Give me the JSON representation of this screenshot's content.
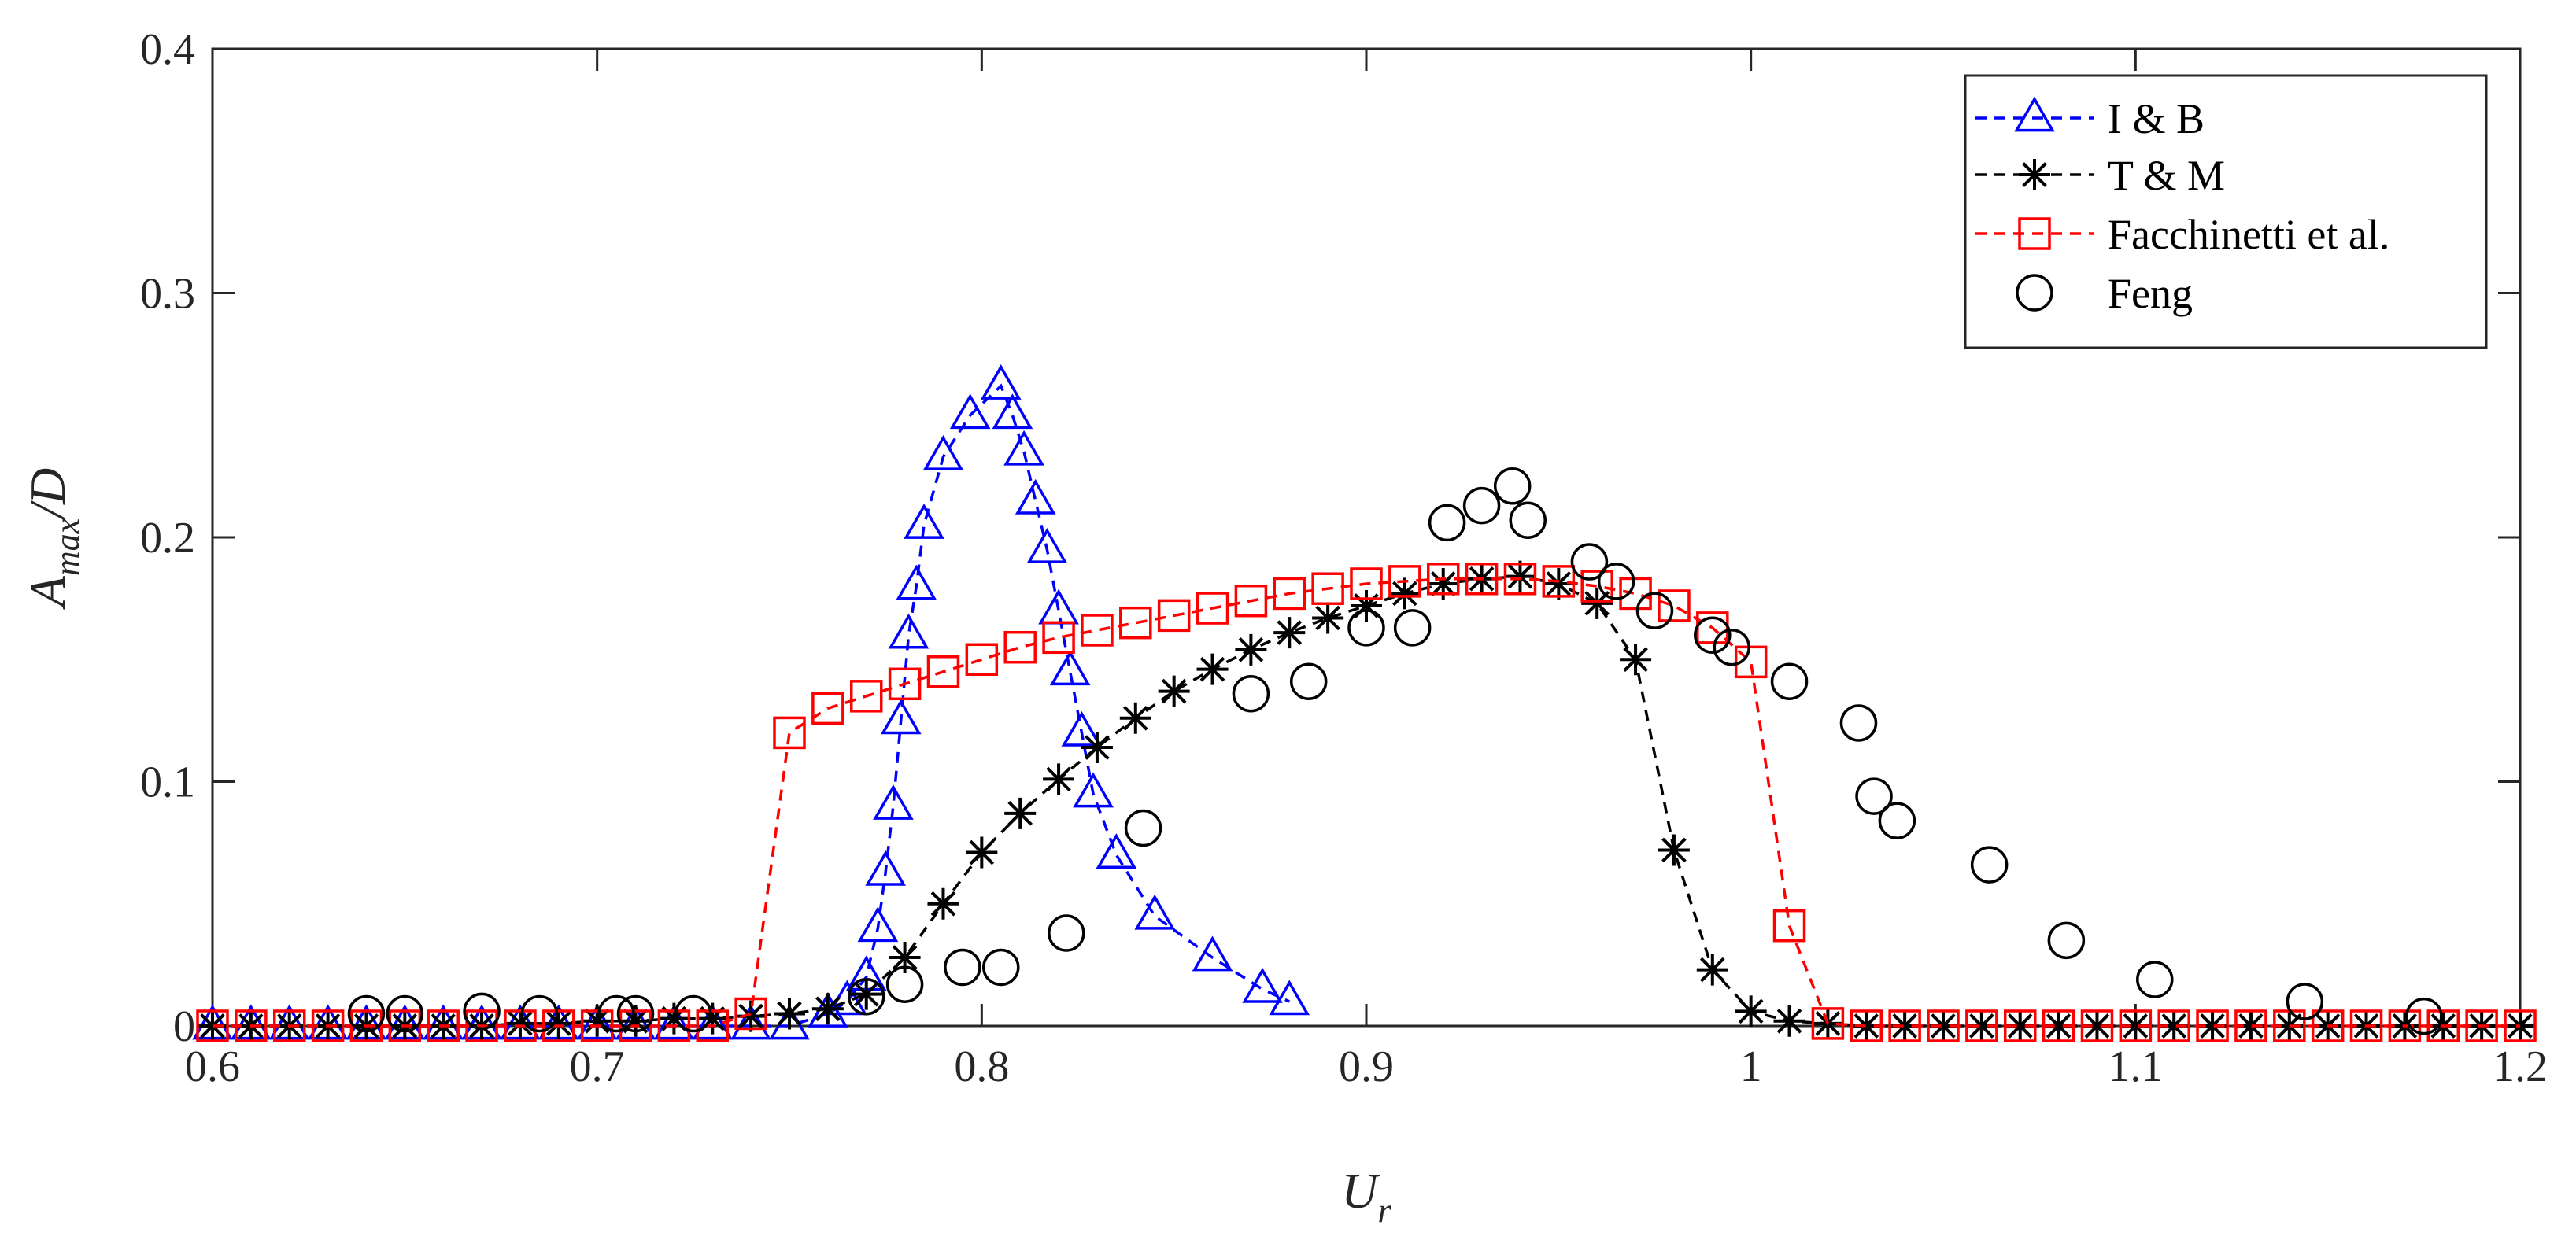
{
  "chart_data": {
    "type": "line",
    "title": "",
    "xlabel": {
      "main": "U",
      "sub": "r"
    },
    "ylabel": {
      "main": "A",
      "sub": "max",
      "suffix": "/D"
    },
    "xlim": [
      0.6,
      1.2
    ],
    "ylim": [
      0,
      0.4
    ],
    "xticks": [
      0.6,
      0.7,
      0.8,
      0.9,
      1.0,
      1.1,
      1.2
    ],
    "xtick_labels": [
      "0.6",
      "0.7",
      "0.8",
      "0.9",
      "1",
      "1.1",
      "1.2"
    ],
    "yticks": [
      0,
      0.1,
      0.2,
      0.3,
      0.4
    ],
    "ytick_labels": [
      "0",
      "0.1",
      "0.2",
      "0.3",
      "0.4"
    ],
    "grid": false,
    "legend_position": "top-right",
    "series": [
      {
        "name": "I & B",
        "color": "#0000ff",
        "marker": "triangle",
        "line": "dashed",
        "x": [
          0.6,
          0.61,
          0.62,
          0.63,
          0.64,
          0.65,
          0.66,
          0.67,
          0.68,
          0.69,
          0.7,
          0.71,
          0.72,
          0.73,
          0.74,
          0.75,
          0.76,
          0.765,
          0.77,
          0.773,
          0.775,
          0.777,
          0.779,
          0.781,
          0.783,
          0.785,
          0.79,
          0.797,
          0.805,
          0.808,
          0.811,
          0.814,
          0.817,
          0.82,
          0.823,
          0.826,
          0.829,
          0.835,
          0.845,
          0.86,
          0.873,
          0.88
        ],
        "y": [
          0,
          0,
          0,
          0,
          0,
          0,
          0,
          0,
          0,
          0,
          0,
          0,
          0,
          0,
          0,
          0,
          0.005,
          0.01,
          0.02,
          0.04,
          0.063,
          0.09,
          0.125,
          0.16,
          0.18,
          0.205,
          0.233,
          0.25,
          0.262,
          0.25,
          0.235,
          0.215,
          0.195,
          0.17,
          0.145,
          0.12,
          0.095,
          0.07,
          0.045,
          0.028,
          0.015,
          0.01
        ]
      },
      {
        "name": "T & M",
        "color": "#000000",
        "marker": "asterisk",
        "line": "dashed",
        "x": [
          0.6,
          0.61,
          0.62,
          0.63,
          0.64,
          0.65,
          0.66,
          0.67,
          0.68,
          0.69,
          0.7,
          0.71,
          0.72,
          0.73,
          0.74,
          0.75,
          0.76,
          0.77,
          0.78,
          0.79,
          0.8,
          0.81,
          0.82,
          0.83,
          0.84,
          0.85,
          0.86,
          0.87,
          0.88,
          0.89,
          0.9,
          0.91,
          0.92,
          0.93,
          0.94,
          0.95,
          0.96,
          0.97,
          0.98,
          0.99,
          1.0,
          1.01,
          1.02,
          1.03,
          1.04,
          1.05,
          1.06,
          1.07,
          1.08,
          1.09,
          1.1,
          1.11,
          1.12,
          1.13,
          1.14,
          1.15,
          1.16,
          1.17,
          1.18,
          1.19,
          1.2
        ],
        "y": [
          0,
          0,
          0,
          0,
          0,
          0,
          0,
          0,
          0.001,
          0.001,
          0.002,
          0.002,
          0.003,
          0.003,
          0.004,
          0.005,
          0.007,
          0.013,
          0.028,
          0.05,
          0.071,
          0.087,
          0.101,
          0.114,
          0.126,
          0.137,
          0.146,
          0.154,
          0.161,
          0.167,
          0.172,
          0.177,
          0.181,
          0.183,
          0.184,
          0.181,
          0.173,
          0.15,
          0.072,
          0.023,
          0.006,
          0.002,
          0.001,
          0,
          0,
          0,
          0,
          0,
          0,
          0,
          0,
          0,
          0,
          0,
          0,
          0,
          0,
          0,
          0,
          0,
          0
        ]
      },
      {
        "name": "Facchinetti et al.",
        "color": "#ff0000",
        "marker": "square",
        "line": "dashed",
        "x": [
          0.6,
          0.61,
          0.62,
          0.63,
          0.64,
          0.65,
          0.66,
          0.67,
          0.68,
          0.69,
          0.7,
          0.71,
          0.72,
          0.73,
          0.74,
          0.75,
          0.76,
          0.77,
          0.78,
          0.79,
          0.8,
          0.81,
          0.82,
          0.83,
          0.84,
          0.85,
          0.86,
          0.87,
          0.88,
          0.89,
          0.9,
          0.91,
          0.92,
          0.93,
          0.94,
          0.95,
          0.96,
          0.97,
          0.98,
          0.99,
          1.0,
          1.01,
          1.02,
          1.03,
          1.04,
          1.05,
          1.06,
          1.07,
          1.08,
          1.09,
          1.1,
          1.11,
          1.12,
          1.13,
          1.14,
          1.15,
          1.16,
          1.17,
          1.18,
          1.19,
          1.2
        ],
        "y": [
          0,
          0,
          0,
          0,
          0,
          0,
          0,
          0,
          0,
          0,
          0,
          0,
          0,
          0,
          0.005,
          0.12,
          0.13,
          0.135,
          0.14,
          0.145,
          0.15,
          0.155,
          0.159,
          0.162,
          0.165,
          0.168,
          0.171,
          0.174,
          0.177,
          0.179,
          0.181,
          0.182,
          0.183,
          0.183,
          0.183,
          0.182,
          0.18,
          0.177,
          0.172,
          0.163,
          0.149,
          0.041,
          0.001,
          0,
          0,
          0,
          0,
          0,
          0,
          0,
          0,
          0,
          0,
          0,
          0,
          0,
          0,
          0,
          0,
          0,
          0
        ]
      },
      {
        "name": "Feng",
        "color": "#000000",
        "marker": "circle",
        "line": "none",
        "x": [
          0.64,
          0.65,
          0.67,
          0.685,
          0.705,
          0.71,
          0.725,
          0.77,
          0.78,
          0.795,
          0.805,
          0.822,
          0.842,
          0.87,
          0.885,
          0.9,
          0.912,
          0.921,
          0.93,
          0.938,
          0.942,
          0.958,
          0.965,
          0.975,
          0.99,
          0.995,
          1.01,
          1.028,
          1.032,
          1.038,
          1.062,
          1.082,
          1.105,
          1.144,
          1.175
        ],
        "y": [
          0.005,
          0.005,
          0.006,
          0.005,
          0.005,
          0.005,
          0.005,
          0.012,
          0.017,
          0.024,
          0.024,
          0.038,
          0.081,
          0.136,
          0.141,
          0.163,
          0.163,
          0.206,
          0.213,
          0.221,
          0.207,
          0.19,
          0.182,
          0.17,
          0.16,
          0.155,
          0.141,
          0.124,
          0.094,
          0.084,
          0.066,
          0.035,
          0.019,
          0.01,
          0.004
        ]
      }
    ]
  }
}
